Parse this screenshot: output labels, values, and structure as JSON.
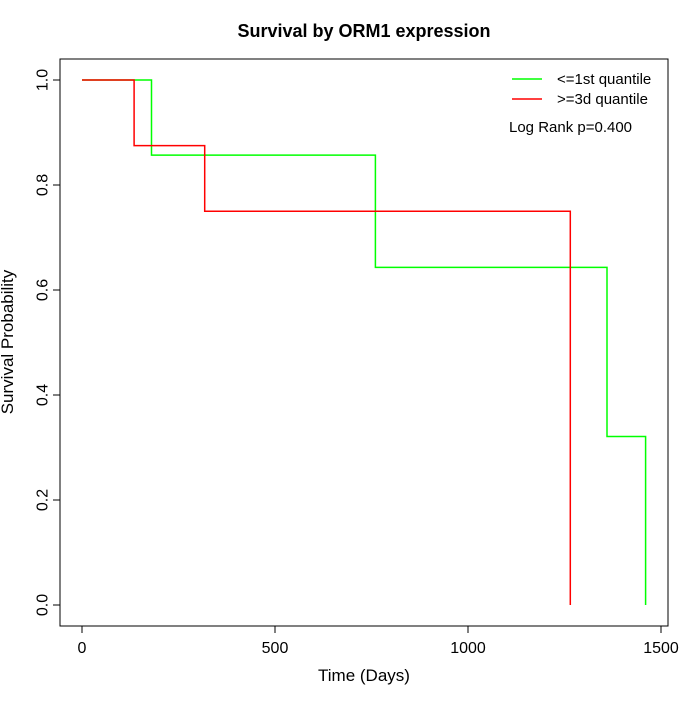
{
  "chart_data": {
    "type": "line",
    "title": "Survival by ORM1 expression",
    "xlabel": "Time (Days)",
    "ylabel": "Survival Probability",
    "xlim": [
      0,
      1500
    ],
    "ylim": [
      0,
      1.0
    ],
    "x_ticks": [
      "0",
      "500",
      "1000",
      "1500"
    ],
    "y_ticks": [
      "0.0",
      "0.2",
      "0.4",
      "0.6",
      "0.8",
      "1.0"
    ],
    "legend_position": "top-right",
    "annotation": "Log Rank p=0.400",
    "series": [
      {
        "name": "<=1st quantile",
        "color": "#00ff00",
        "step_points": [
          [
            0,
            1.0
          ],
          [
            180,
            1.0
          ],
          [
            180,
            0.857
          ],
          [
            760,
            0.857
          ],
          [
            760,
            0.643
          ],
          [
            1360,
            0.643
          ],
          [
            1360,
            0.321
          ],
          [
            1460,
            0.321
          ],
          [
            1460,
            0.0
          ]
        ]
      },
      {
        "name": ">=3d quantile",
        "color": "#ff0000",
        "step_points": [
          [
            0,
            1.0
          ],
          [
            135,
            1.0
          ],
          [
            135,
            0.875
          ],
          [
            318,
            0.875
          ],
          [
            318,
            0.75
          ],
          [
            1265,
            0.75
          ],
          [
            1265,
            0.0
          ]
        ]
      }
    ]
  }
}
